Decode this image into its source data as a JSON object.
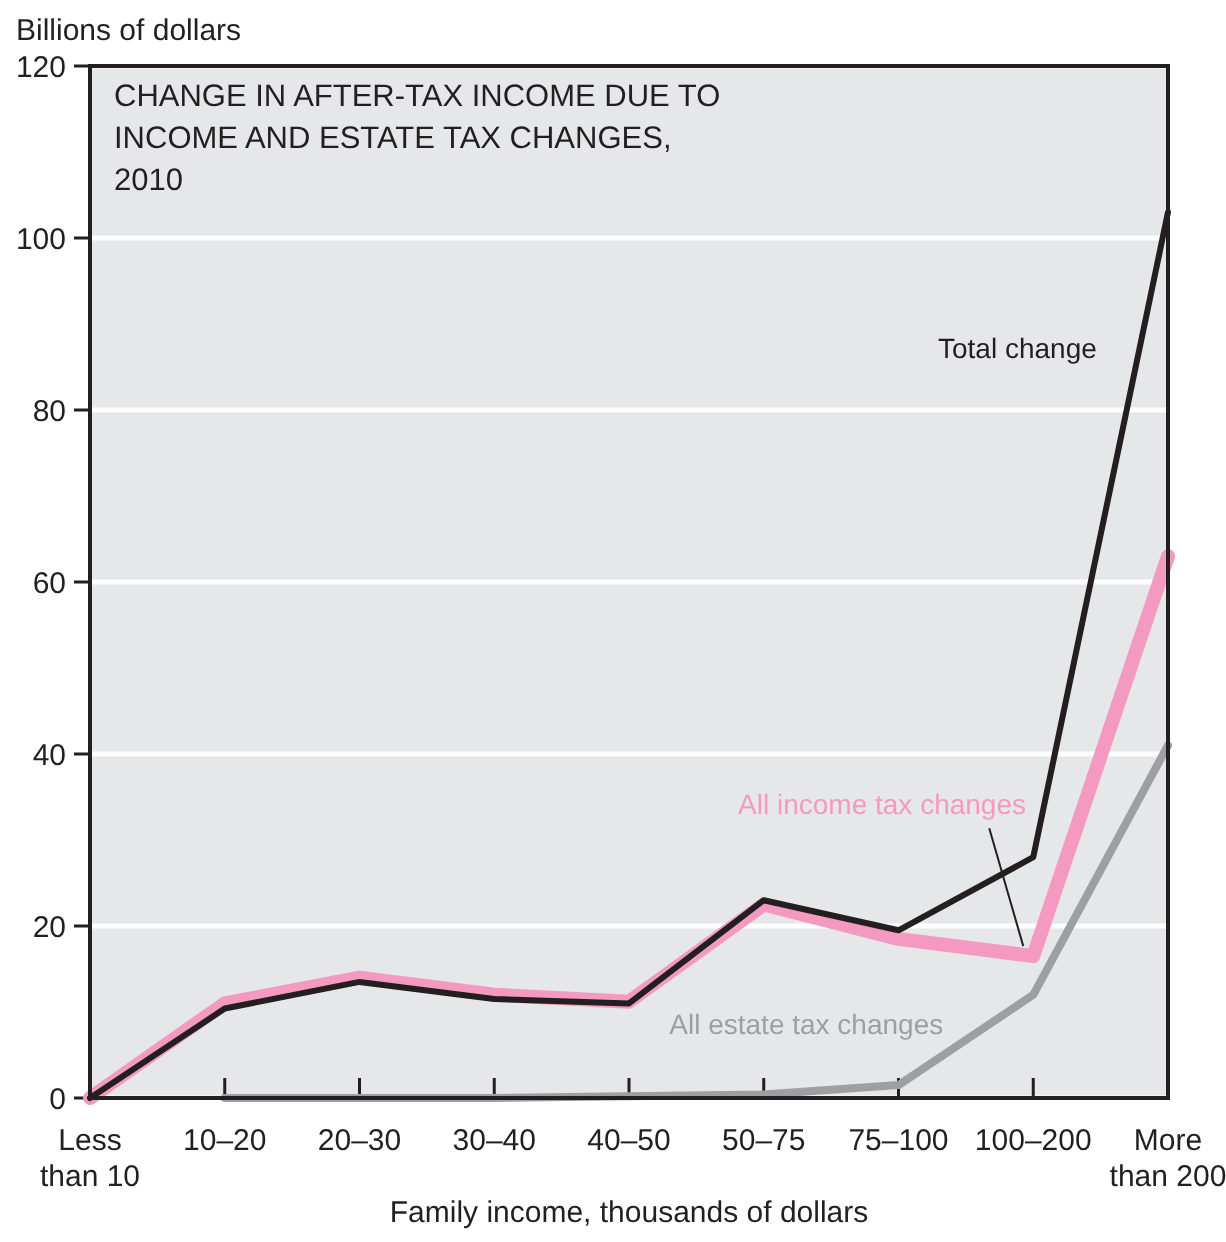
{
  "chart_data": {
    "type": "line",
    "title": "CHANGE IN AFTER-TAX INCOME DUE TO INCOME AND ESTATE TAX CHANGES, 2010",
    "ylabel": "Billions of dollars",
    "xlabel": "Family income, thousands of dollars",
    "categories": [
      "Less than 10",
      "10–20",
      "20–30",
      "30–40",
      "40–50",
      "50–75",
      "75–100",
      "100–200",
      "More than 200"
    ],
    "series": [
      {
        "name": "All estate tax changes",
        "color": "#9d9fa2",
        "values": [
          null,
          0,
          0,
          0,
          0.2,
          0.4,
          1.5,
          12,
          41
        ]
      },
      {
        "name": "All income tax changes",
        "color": "#f49ac1",
        "values": [
          0,
          11,
          14,
          12,
          11.2,
          22.5,
          18.5,
          16.5,
          63
        ]
      },
      {
        "name": "Total change",
        "color": "#231f20",
        "values": [
          0,
          10.4,
          13.5,
          11.5,
          11,
          23,
          19.5,
          28,
          103
        ]
      }
    ],
    "ylim": [
      0,
      120
    ],
    "yticks": [
      0,
      20,
      40,
      60,
      80,
      100,
      120
    ],
    "grid": "y"
  }
}
